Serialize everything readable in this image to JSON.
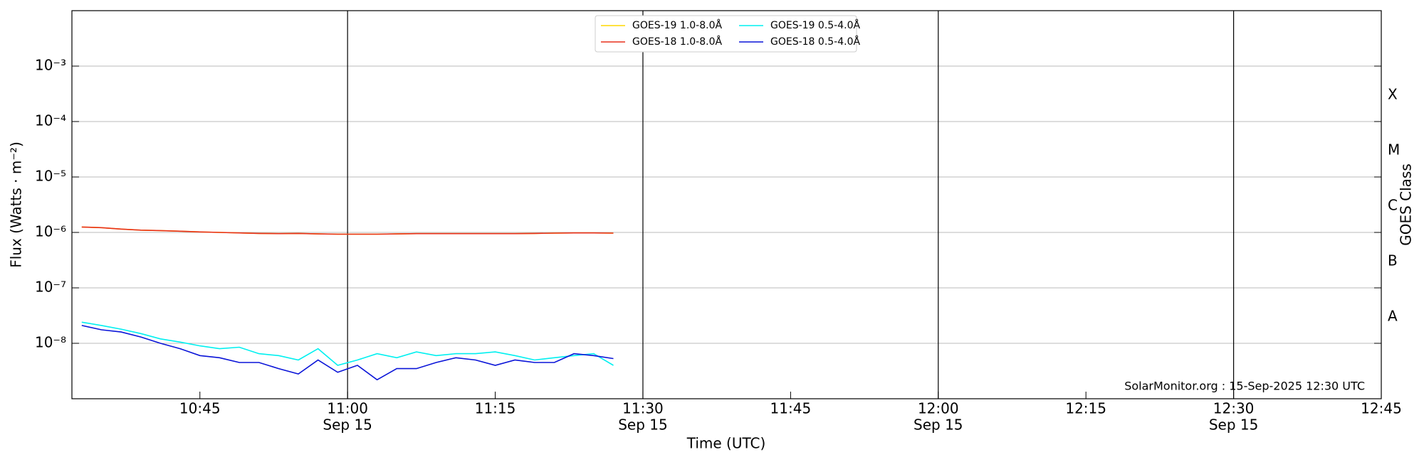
{
  "chart_data": {
    "type": "line",
    "xlabel": "Time (UTC)",
    "ylabel": "Flux (Watts · m⁻²)",
    "y2label": "GOES Class",
    "annotation": "SolarMonitor.org : 15-Sep-2025 12:30 UTC",
    "log_y": true,
    "legend": "top-center",
    "xlim": [
      "10:32",
      "12:45"
    ],
    "xticks": [
      {
        "value": "10:45",
        "label": "10:45"
      },
      {
        "value": "11:00",
        "label": "11:00",
        "date": "Sep 15"
      },
      {
        "value": "11:15",
        "label": "11:15"
      },
      {
        "value": "11:30",
        "label": "11:30",
        "date": "Sep 15"
      },
      {
        "value": "11:45",
        "label": "11:45"
      },
      {
        "value": "12:00",
        "label": "12:00",
        "date": "Sep 15"
      },
      {
        "value": "12:15",
        "label": "12:15"
      },
      {
        "value": "12:30",
        "label": "12:30",
        "date": "Sep 15"
      },
      {
        "value": "12:45",
        "label": "12:45"
      }
    ],
    "xgrid": [
      "11:00",
      "11:30",
      "12:00",
      "12:30"
    ],
    "ylim": [
      1e-09,
      0.01
    ],
    "yticks": [
      {
        "value": 1e-08,
        "label": "10⁻⁸"
      },
      {
        "value": 1e-07,
        "label": "10⁻⁷"
      },
      {
        "value": 1e-06,
        "label": "10⁻⁶"
      },
      {
        "value": 1e-05,
        "label": "10⁻⁵"
      },
      {
        "value": 0.0001,
        "label": "10⁻⁴"
      },
      {
        "value": 0.001,
        "label": "10⁻³"
      }
    ],
    "y2lim": [
      1e-09,
      0.01
    ],
    "y2ticks": [
      {
        "value": 3e-08,
        "label": "A"
      },
      {
        "value": 3e-07,
        "label": "B"
      },
      {
        "value": 3e-06,
        "label": "C"
      },
      {
        "value": 3e-05,
        "label": "M"
      },
      {
        "value": 0.0003,
        "label": "X"
      }
    ],
    "grid": true,
    "x": [
      "10:33",
      "10:35",
      "10:37",
      "10:39",
      "10:41",
      "10:43",
      "10:45",
      "10:47",
      "10:49",
      "10:51",
      "10:53",
      "10:55",
      "10:57",
      "10:59",
      "11:01",
      "11:03",
      "11:05",
      "11:07",
      "11:09",
      "11:11",
      "11:13",
      "11:15",
      "11:17",
      "11:19",
      "11:21",
      "11:23",
      "11:25",
      "11:27"
    ],
    "series": [
      {
        "name": "GOES-19 1.0-8.0Å",
        "color": "#ffd700",
        "values": [
          1.25e-06,
          1.22e-06,
          1.15e-06,
          1.1e-06,
          1.08e-06,
          1.05e-06,
          1.02e-06,
          1e-06,
          9.8e-07,
          9.6e-07,
          9.5e-07,
          9.6e-07,
          9.4e-07,
          9.3e-07,
          9.3e-07,
          9.3e-07,
          9.4e-07,
          9.5e-07,
          9.5e-07,
          9.5e-07,
          9.5e-07,
          9.5e-07,
          9.5e-07,
          9.6e-07,
          9.7e-07,
          9.8e-07,
          9.8e-07,
          9.7e-07
        ]
      },
      {
        "name": "GOES-18 1.0-8.0Å",
        "color": "#e8301c",
        "values": [
          1.25e-06,
          1.22e-06,
          1.15e-06,
          1.1e-06,
          1.08e-06,
          1.05e-06,
          1.02e-06,
          1e-06,
          9.8e-07,
          9.6e-07,
          9.5e-07,
          9.6e-07,
          9.4e-07,
          9.3e-07,
          9.3e-07,
          9.3e-07,
          9.4e-07,
          9.5e-07,
          9.5e-07,
          9.5e-07,
          9.5e-07,
          9.5e-07,
          9.5e-07,
          9.6e-07,
          9.7e-07,
          9.8e-07,
          9.8e-07,
          9.7e-07
        ]
      },
      {
        "name": "GOES-19 0.5-4.0Å",
        "color": "#00f0f0",
        "values": [
          2.4e-08,
          2.1e-08,
          1.8e-08,
          1.5e-08,
          1.2e-08,
          1.05e-08,
          9e-09,
          8e-09,
          8.5e-09,
          6.5e-09,
          6e-09,
          5e-09,
          8e-09,
          4e-09,
          5e-09,
          6.5e-09,
          5.5e-09,
          7e-09,
          6e-09,
          6.5e-09,
          6.5e-09,
          7e-09,
          6e-09,
          5e-09,
          5.5e-09,
          6e-09,
          6.5e-09,
          4e-09
        ]
      },
      {
        "name": "GOES-18 0.5-4.0Å",
        "color": "#0a14d8",
        "values": [
          2.1e-08,
          1.75e-08,
          1.6e-08,
          1.3e-08,
          1e-08,
          8e-09,
          6e-09,
          5.5e-09,
          4.5e-09,
          4.5e-09,
          3.5e-09,
          2.8e-09,
          5e-09,
          3e-09,
          4e-09,
          2.2e-09,
          3.5e-09,
          3.5e-09,
          4.5e-09,
          5.5e-09,
          5e-09,
          4e-09,
          5e-09,
          4.5e-09,
          4.5e-09,
          6.5e-09,
          6e-09,
          5.3e-09
        ]
      }
    ]
  }
}
